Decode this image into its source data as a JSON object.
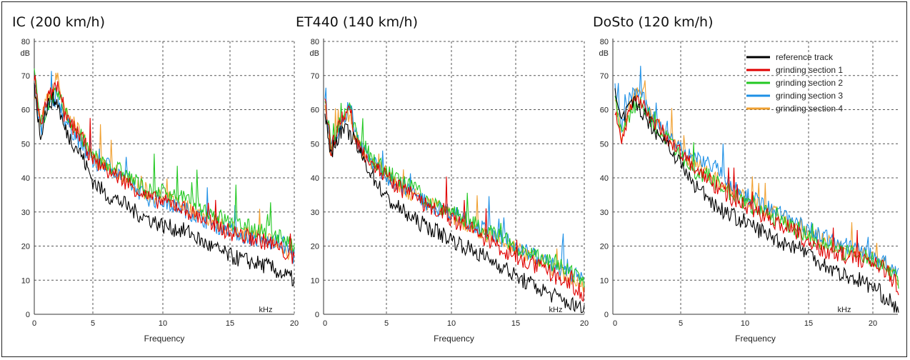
{
  "chart_data": [
    {
      "type": "line",
      "title": "IC (200 km/h)",
      "xlabel": "Frequency",
      "x_unit": "kHz",
      "y_unit": "dB",
      "xlim": [
        0,
        20
      ],
      "ylim": [
        0,
        80
      ],
      "x_ticks": [
        0,
        5,
        10,
        15,
        20
      ],
      "y_ticks": [
        0,
        10,
        20,
        30,
        40,
        50,
        60,
        70,
        80
      ],
      "grid": true,
      "series": [
        {
          "name": "reference track",
          "color": "#000000",
          "x": [
            0,
            0.5,
            1,
            1.5,
            2,
            2.5,
            3,
            4,
            5,
            6,
            7,
            8,
            9,
            10,
            11,
            12,
            13,
            14,
            15,
            16,
            17,
            18,
            19,
            20
          ],
          "y": [
            68,
            52,
            60,
            63,
            62,
            55,
            52,
            47,
            39,
            35,
            33,
            30,
            28,
            26,
            25,
            24,
            21,
            19,
            17,
            16,
            15,
            14,
            12,
            10
          ]
        },
        {
          "name": "grinding section 1",
          "color": "#e00000",
          "x": [
            0,
            0.5,
            1,
            1.5,
            2,
            2.5,
            3,
            4,
            5,
            6,
            7,
            8,
            9,
            10,
            11,
            12,
            13,
            14,
            15,
            16,
            17,
            18,
            19,
            20
          ],
          "y": [
            70,
            55,
            62,
            65,
            67,
            58,
            56,
            52,
            45,
            42,
            40,
            37,
            34,
            33,
            32,
            30,
            28,
            26,
            24,
            23,
            22,
            21,
            19,
            16
          ]
        },
        {
          "name": "grinding section 2",
          "color": "#22c822",
          "x": [
            0,
            0.5,
            1,
            1.5,
            2,
            2.5,
            3,
            4,
            5,
            6,
            7,
            8,
            9,
            10,
            11,
            12,
            13,
            14,
            15,
            16,
            17,
            18,
            19,
            20
          ],
          "y": [
            72,
            55,
            60,
            63,
            65,
            60,
            57,
            52,
            46,
            44,
            42,
            39,
            36,
            36,
            35,
            33,
            31,
            29,
            27,
            26,
            25,
            24,
            23,
            19
          ]
        },
        {
          "name": "grinding section 3",
          "color": "#1e90e6",
          "x": [
            0,
            0.5,
            1,
            1.5,
            2,
            2.5,
            3,
            4,
            5,
            6,
            7,
            8,
            9,
            10,
            11,
            12,
            13,
            14,
            15,
            16,
            17,
            18,
            19,
            20
          ],
          "y": [
            69,
            53,
            60,
            62,
            64,
            58,
            55,
            50,
            44,
            44,
            41,
            37,
            34,
            33,
            32,
            30,
            28,
            26,
            25,
            23,
            22,
            21,
            21,
            17
          ]
        },
        {
          "name": "grinding section 4",
          "color": "#f0a030",
          "x": [
            0,
            0.5,
            1,
            1.5,
            2,
            2.5,
            3,
            4,
            5,
            6,
            7,
            8,
            9,
            10,
            11,
            12,
            13,
            14,
            15,
            16,
            17,
            18,
            19,
            20
          ],
          "y": [
            66,
            55,
            62,
            66,
            70,
            60,
            57,
            53,
            46,
            43,
            41,
            38,
            35,
            34,
            33,
            31,
            29,
            27,
            25,
            24,
            23,
            22,
            20,
            17
          ]
        }
      ]
    },
    {
      "type": "line",
      "title": "ET440 (140 km/h)",
      "xlabel": "Frequency",
      "x_unit": "kHz",
      "y_unit": "dB",
      "xlim": [
        0,
        20
      ],
      "ylim": [
        0,
        80
      ],
      "x_ticks": [
        0,
        5,
        10,
        15,
        20
      ],
      "y_ticks": [
        0,
        10,
        20,
        30,
        40,
        50,
        60,
        70,
        80
      ],
      "grid": true,
      "series": [
        {
          "name": "reference track",
          "color": "#000000",
          "x": [
            0,
            0.5,
            1,
            1.5,
            2,
            2.5,
            3,
            4,
            5,
            6,
            7,
            8,
            9,
            10,
            11,
            12,
            13,
            14,
            15,
            16,
            17,
            18,
            19,
            20
          ],
          "y": [
            58,
            47,
            52,
            54,
            53,
            50,
            46,
            40,
            34,
            31,
            28,
            26,
            24,
            22,
            20,
            18,
            16,
            14,
            11,
            9,
            7,
            5,
            3,
            1
          ]
        },
        {
          "name": "grinding section 1",
          "color": "#e00000",
          "x": [
            0,
            0.5,
            1,
            1.5,
            2,
            2.5,
            3,
            4,
            5,
            6,
            7,
            8,
            9,
            10,
            11,
            12,
            13,
            14,
            15,
            16,
            17,
            18,
            19,
            20
          ],
          "y": [
            62,
            48,
            55,
            58,
            60,
            52,
            48,
            44,
            40,
            37,
            35,
            32,
            30,
            28,
            26,
            24,
            21,
            19,
            17,
            15,
            13,
            11,
            9,
            6
          ]
        },
        {
          "name": "grinding section 2",
          "color": "#22c822",
          "x": [
            0,
            0.5,
            1,
            1.5,
            2,
            2.5,
            3,
            4,
            5,
            6,
            7,
            8,
            9,
            10,
            11,
            12,
            13,
            14,
            15,
            16,
            17,
            18,
            19,
            20
          ],
          "y": [
            63,
            49,
            55,
            58,
            60,
            54,
            50,
            45,
            42,
            39,
            37,
            34,
            32,
            30,
            28,
            26,
            24,
            22,
            20,
            18,
            16,
            14,
            12,
            9
          ]
        },
        {
          "name": "grinding section 3",
          "color": "#1e90e6",
          "x": [
            0,
            0.5,
            1,
            1.5,
            2,
            2.5,
            3,
            4,
            5,
            6,
            7,
            8,
            9,
            10,
            11,
            12,
            13,
            14,
            15,
            16,
            17,
            18,
            19,
            20
          ],
          "y": [
            64,
            48,
            54,
            57,
            62,
            53,
            49,
            44,
            40,
            38,
            36,
            33,
            31,
            30,
            28,
            26,
            24,
            22,
            20,
            18,
            16,
            14,
            12,
            10
          ]
        },
        {
          "name": "grinding section 4",
          "color": "#f0a030",
          "x": [
            0,
            0.5,
            1,
            1.5,
            2,
            2.5,
            3,
            4,
            5,
            6,
            7,
            8,
            9,
            10,
            11,
            12,
            13,
            14,
            15,
            16,
            17,
            18,
            19,
            20
          ],
          "y": [
            60,
            47,
            54,
            57,
            59,
            52,
            48,
            44,
            41,
            38,
            35,
            33,
            31,
            29,
            27,
            25,
            23,
            21,
            19,
            17,
            15,
            13,
            11,
            8
          ]
        }
      ]
    },
    {
      "type": "line",
      "title": "DoSto (120 km/h)",
      "xlabel": "Frequency",
      "x_unit": "kHz",
      "y_unit": "dB",
      "xlim": [
        0,
        22
      ],
      "ylim": [
        0,
        80
      ],
      "x_ticks": [
        0,
        5,
        10,
        15,
        20
      ],
      "y_ticks": [
        0,
        10,
        20,
        30,
        40,
        50,
        60,
        70,
        80
      ],
      "grid": true,
      "legend_position": "top-right",
      "series": [
        {
          "name": "reference track",
          "color": "#000000",
          "x": [
            0,
            0.5,
            1,
            1.5,
            2,
            3,
            4,
            5,
            6,
            7,
            8,
            9,
            10,
            11,
            12,
            13,
            14,
            15,
            16,
            17,
            18,
            19,
            20,
            21,
            22
          ],
          "y": [
            64,
            56,
            60,
            62,
            60,
            54,
            50,
            44,
            38,
            35,
            31,
            29,
            27,
            25,
            23,
            21,
            20,
            18,
            15,
            13,
            11,
            10,
            8,
            5,
            1
          ]
        },
        {
          "name": "grinding section 1",
          "color": "#e00000",
          "x": [
            0,
            0.5,
            1,
            1.5,
            2,
            3,
            4,
            5,
            6,
            7,
            8,
            9,
            10,
            11,
            12,
            13,
            14,
            15,
            16,
            17,
            18,
            19,
            20,
            21,
            22
          ],
          "y": [
            60,
            50,
            58,
            62,
            63,
            56,
            52,
            47,
            43,
            40,
            37,
            34,
            32,
            30,
            28,
            26,
            24,
            21,
            19,
            18,
            17,
            16,
            15,
            13,
            8
          ]
        },
        {
          "name": "grinding section 2",
          "color": "#22c822",
          "x": [
            0,
            0.5,
            1,
            1.5,
            2,
            3,
            4,
            5,
            6,
            7,
            8,
            9,
            10,
            11,
            12,
            13,
            14,
            15,
            16,
            17,
            18,
            19,
            20,
            21,
            22
          ],
          "y": [
            62,
            52,
            58,
            61,
            62,
            55,
            51,
            46,
            42,
            40,
            38,
            35,
            33,
            31,
            29,
            27,
            25,
            23,
            21,
            19,
            18,
            17,
            16,
            14,
            10
          ]
        },
        {
          "name": "grinding section 3",
          "color": "#1e90e6",
          "x": [
            0,
            0.5,
            1,
            1.5,
            2,
            3,
            4,
            5,
            6,
            7,
            8,
            9,
            10,
            11,
            12,
            13,
            14,
            15,
            16,
            17,
            18,
            19,
            20,
            21,
            22
          ],
          "y": [
            66,
            55,
            62,
            66,
            64,
            57,
            52,
            48,
            46,
            45,
            42,
            38,
            35,
            33,
            31,
            29,
            27,
            25,
            23,
            21,
            20,
            19,
            17,
            15,
            12
          ]
        },
        {
          "name": "grinding section 4",
          "color": "#f0a030",
          "x": [
            0,
            0.5,
            1,
            1.5,
            2,
            3,
            4,
            5,
            6,
            7,
            8,
            9,
            10,
            11,
            12,
            13,
            14,
            15,
            16,
            17,
            18,
            19,
            20,
            21,
            22
          ],
          "y": [
            63,
            53,
            60,
            64,
            66,
            57,
            53,
            48,
            44,
            42,
            39,
            36,
            34,
            32,
            30,
            28,
            26,
            24,
            22,
            20,
            19,
            18,
            16,
            14,
            10
          ]
        }
      ]
    }
  ]
}
